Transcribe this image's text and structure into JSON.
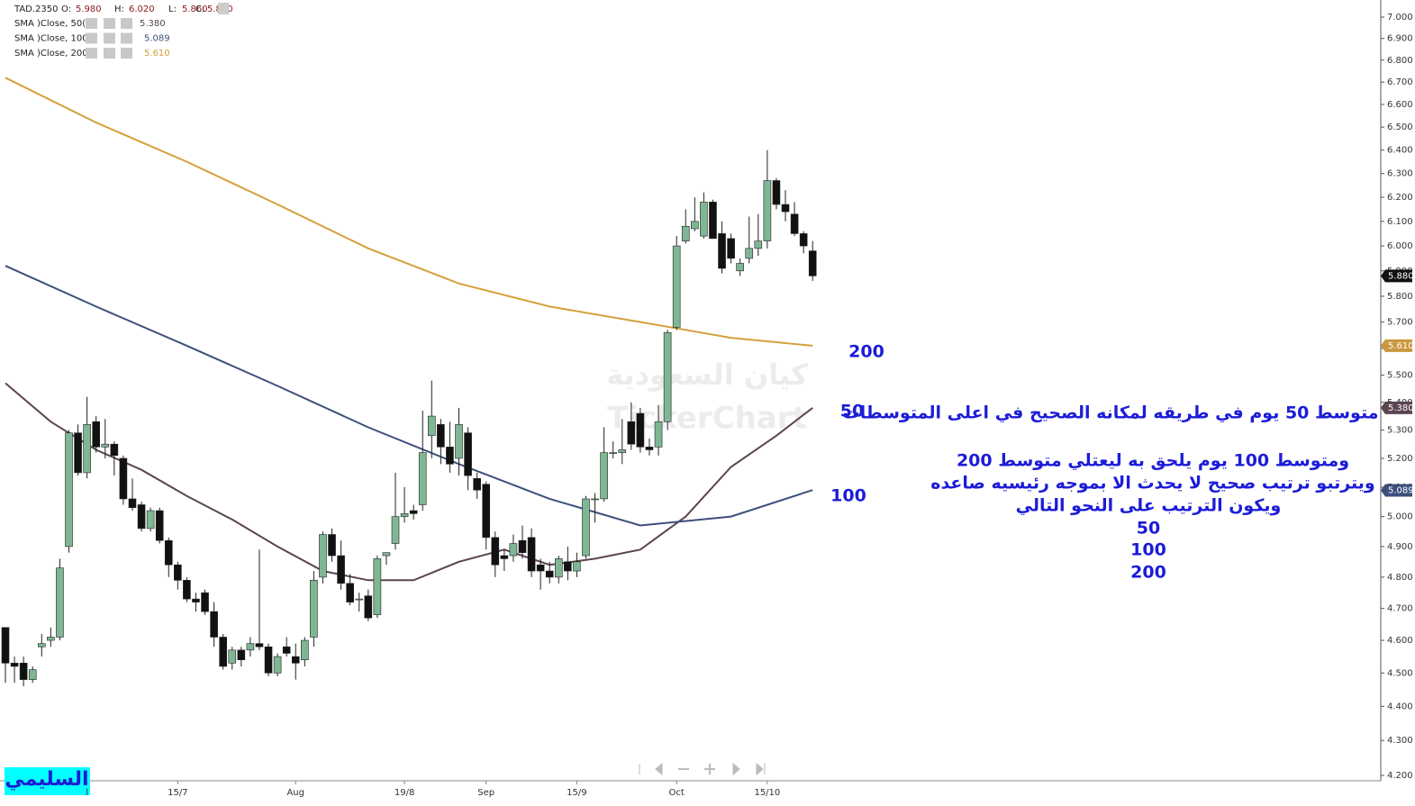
{
  "chart_data": {
    "type": "candlestick",
    "log_scale": true,
    "header": {
      "symbol": "TAD.2350",
      "fields": [
        {
          "key": "O:",
          "value": "5.980"
        },
        {
          "key": "H:",
          "value": "6.020"
        },
        {
          "key": "L:",
          "value": "5.860"
        },
        {
          "key": "C:",
          "value": "5.880"
        }
      ]
    },
    "categories": [
      null,
      null,
      null,
      null,
      null,
      null,
      null,
      null,
      null,
      "l",
      null,
      null,
      null,
      null,
      null,
      null,
      null,
      null,
      null,
      "15/7",
      null,
      null,
      null,
      null,
      null,
      null,
      null,
      null,
      null,
      null,
      null,
      null,
      "Aug",
      null,
      null,
      null,
      null,
      null,
      null,
      null,
      null,
      null,
      null,
      null,
      "19/8",
      null,
      null,
      null,
      null,
      null,
      null,
      null,
      null,
      "Sep",
      null,
      null,
      null,
      null,
      null,
      null,
      null,
      null,
      null,
      "15/9",
      null,
      null,
      null,
      null,
      null,
      null,
      null,
      null,
      null,
      null,
      "Oct",
      null,
      null,
      null,
      null,
      null,
      null,
      null,
      null,
      null,
      "15/10",
      null,
      null,
      null,
      null,
      null
    ],
    "open": [
      4.64,
      4.53,
      4.53,
      4.48,
      4.58,
      4.6,
      4.61,
      4.9,
      5.29,
      5.15,
      5.33,
      5.24,
      5.25,
      5.2,
      5.06,
      5.04,
      4.96,
      5.02,
      4.92,
      4.84,
      4.79,
      4.73,
      4.75,
      4.69,
      4.61,
      4.53,
      4.57,
      4.57,
      4.59,
      4.58,
      4.5,
      4.58,
      4.55,
      4.54,
      4.61,
      4.8,
      4.94,
      4.87,
      4.78,
      4.73,
      4.74,
      4.68,
      4.87,
      4.91,
      5.0,
      5.02,
      5.04,
      5.28,
      5.32,
      5.24,
      5.2,
      5.29,
      5.13,
      5.11,
      4.93,
      4.87,
      4.87,
      4.92,
      4.93,
      4.84,
      4.82,
      4.8,
      4.85,
      4.82,
      4.87,
      5.06,
      5.06,
      5.22,
      5.22,
      5.33,
      5.36,
      5.24,
      5.24,
      5.33,
      5.68,
      6.02,
      6.07,
      6.04,
      6.18,
      6.05,
      6.03,
      5.9,
      5.95,
      5.99,
      6.02,
      6.27,
      6.17,
      6.13,
      6.05,
      5.98
    ],
    "high": [
      4.64,
      4.55,
      4.55,
      4.52,
      4.62,
      4.64,
      4.86,
      5.3,
      5.32,
      5.42,
      5.35,
      5.34,
      5.26,
      5.21,
      5.13,
      5.05,
      5.03,
      5.03,
      4.93,
      4.85,
      4.8,
      4.75,
      4.76,
      4.72,
      4.62,
      4.58,
      4.58,
      4.61,
      4.89,
      4.59,
      4.56,
      4.61,
      4.59,
      4.61,
      4.82,
      4.95,
      4.96,
      4.92,
      4.81,
      4.75,
      4.76,
      4.87,
      4.88,
      5.15,
      5.1,
      5.04,
      5.37,
      5.48,
      5.34,
      5.33,
      5.38,
      5.31,
      5.15,
      5.12,
      4.95,
      4.89,
      4.94,
      4.97,
      4.96,
      4.86,
      4.85,
      4.87,
      4.9,
      4.88,
      5.07,
      5.08,
      5.31,
      5.26,
      5.34,
      5.4,
      5.38,
      5.27,
      5.39,
      5.67,
      6.04,
      6.15,
      6.2,
      6.22,
      6.19,
      6.1,
      6.05,
      5.95,
      6.12,
      6.13,
      6.4,
      6.28,
      6.23,
      6.18,
      6.06,
      6.02
    ],
    "low": [
      4.47,
      4.47,
      4.46,
      4.47,
      4.55,
      4.58,
      4.6,
      4.88,
      5.14,
      5.13,
      5.22,
      5.2,
      5.14,
      5.04,
      5.02,
      4.95,
      4.95,
      4.91,
      4.8,
      4.76,
      4.72,
      4.69,
      4.68,
      4.58,
      4.51,
      4.51,
      4.52,
      4.55,
      4.57,
      4.49,
      4.49,
      4.55,
      4.48,
      4.52,
      4.58,
      4.78,
      4.85,
      4.76,
      4.71,
      4.69,
      4.66,
      4.67,
      4.84,
      4.89,
      4.98,
      4.99,
      5.02,
      5.2,
      5.18,
      5.15,
      5.14,
      5.09,
      5.06,
      4.89,
      4.8,
      4.82,
      4.85,
      4.86,
      4.8,
      4.76,
      4.78,
      4.78,
      4.79,
      4.8,
      4.86,
      4.98,
      5.05,
      5.2,
      5.18,
      5.23,
      5.22,
      5.21,
      5.21,
      5.3,
      5.67,
      6.01,
      6.06,
      6.03,
      6.03,
      5.89,
      5.93,
      5.88,
      5.93,
      5.96,
      5.99,
      6.15,
      6.1,
      6.04,
      5.97,
      5.86
    ],
    "close": [
      4.53,
      4.52,
      4.48,
      4.51,
      4.59,
      4.61,
      4.83,
      5.29,
      5.15,
      5.32,
      5.24,
      5.25,
      5.21,
      5.06,
      5.03,
      4.96,
      5.02,
      4.92,
      4.84,
      4.79,
      4.73,
      4.72,
      4.69,
      4.61,
      4.52,
      4.57,
      4.54,
      4.59,
      4.58,
      4.5,
      4.55,
      4.56,
      4.53,
      4.6,
      4.79,
      4.94,
      4.87,
      4.78,
      4.72,
      4.73,
      4.67,
      4.86,
      4.88,
      5.0,
      5.01,
      5.01,
      5.22,
      5.35,
      5.24,
      5.18,
      5.32,
      5.14,
      5.09,
      4.93,
      4.84,
      4.86,
      4.91,
      4.88,
      4.82,
      4.82,
      4.8,
      4.86,
      4.82,
      4.85,
      5.06,
      5.06,
      5.22,
      5.22,
      5.23,
      5.25,
      5.24,
      5.23,
      5.33,
      5.66,
      6.0,
      6.08,
      6.1,
      6.18,
      6.03,
      5.91,
      5.95,
      5.93,
      5.99,
      6.02,
      6.27,
      6.17,
      6.14,
      6.05,
      6.0,
      5.88
    ],
    "up_color": "#7fb693",
    "down_color": "#111111",
    "series": [
      {
        "name": "SMA )Close, 50(",
        "color": "#5b4550",
        "last_label": "5.380",
        "x": [
          0,
          5,
          10,
          15,
          20,
          25,
          30,
          35,
          40,
          45,
          50,
          55,
          60,
          65,
          70,
          75,
          80,
          85,
          89
        ],
        "values": [
          5.47,
          5.33,
          5.23,
          5.16,
          5.07,
          4.99,
          4.9,
          4.82,
          4.79,
          4.79,
          4.85,
          4.89,
          4.84,
          4.86,
          4.89,
          5.0,
          5.17,
          5.28,
          5.38
        ]
      },
      {
        "name": "SMA )Close, 100(",
        "color": "#3d4f7c",
        "last_label": "5.089",
        "x": [
          0,
          10,
          20,
          30,
          40,
          50,
          60,
          70,
          80,
          89
        ],
        "values": [
          5.92,
          5.76,
          5.61,
          5.46,
          5.31,
          5.18,
          5.06,
          4.97,
          5.0,
          5.09
        ]
      },
      {
        "name": "SMA )Close, 200(",
        "color": "#d4a03c",
        "last_label": "5.610",
        "x": [
          0,
          10,
          20,
          30,
          40,
          50,
          60,
          70,
          80,
          89
        ],
        "values": [
          6.72,
          6.52,
          6.35,
          6.17,
          5.99,
          5.85,
          5.76,
          5.7,
          5.64,
          5.61
        ]
      }
    ],
    "price_tags": [
      {
        "value": 5.88,
        "label": "5.880",
        "color": "#111111"
      },
      {
        "value": 5.61,
        "label": "5.610",
        "color": "#c9983f"
      },
      {
        "value": 5.38,
        "label": "5.380",
        "color": "#5b4550"
      },
      {
        "value": 5.089,
        "label": "5.089",
        "color": "#3d4f7c"
      }
    ],
    "ylim": [
      4.2,
      7.0
    ],
    "yticks": [
      {
        "value": 4.2,
        "label": "4.200"
      },
      {
        "value": 4.3,
        "label": "4.300"
      },
      {
        "value": 4.4,
        "label": "4.400"
      },
      {
        "value": 4.5,
        "label": "4.500"
      },
      {
        "value": 4.6,
        "label": "4.600"
      },
      {
        "value": 4.7,
        "label": "4.700"
      },
      {
        "value": 4.8,
        "label": "4.800"
      },
      {
        "value": 4.9,
        "label": "4.900"
      },
      {
        "value": 5.0,
        "label": "5.000"
      },
      {
        "value": 5.1,
        "label": "5.100"
      },
      {
        "value": 5.2,
        "label": "5.200"
      },
      {
        "value": 5.3,
        "label": "5.300"
      },
      {
        "value": 5.4,
        "label": "5.400"
      },
      {
        "value": 5.5,
        "label": "5.500"
      },
      {
        "value": 5.6,
        "label": "5.600"
      },
      {
        "value": 5.7,
        "label": "5.700"
      },
      {
        "value": 5.8,
        "label": "5.800"
      },
      {
        "value": 5.9,
        "label": "5.900"
      },
      {
        "value": 6.0,
        "label": "6.000"
      },
      {
        "value": 6.1,
        "label": "6.100"
      },
      {
        "value": 6.2,
        "label": "6.200"
      },
      {
        "value": 6.3,
        "label": "6.300"
      },
      {
        "value": 6.4,
        "label": "6.400"
      },
      {
        "value": 6.5,
        "label": "6.500"
      },
      {
        "value": 6.6,
        "label": "6.600"
      },
      {
        "value": 6.7,
        "label": "6.700"
      },
      {
        "value": 6.8,
        "label": "6.800"
      },
      {
        "value": 6.9,
        "label": "6.900"
      },
      {
        "value": 7.0,
        "label": "7.000"
      }
    ],
    "annotations": [
      "200",
      "50",
      "100"
    ],
    "notes": [
      "متوسط 50 يوم في طريقه لمكانه الصحيح في اعلى المتوسطات",
      "ومتوسط 100 يوم يلحق به ليعتلي متوسط 200",
      "ويترتبو ترتيب صحيح لا يحدث الا بموجه رئيسيه صاعده",
      "ويكون الترتيب على النحو التالي",
      "50",
      "100",
      "200"
    ],
    "watermark": [
      "كيان السعودية",
      "TickerChart"
    ],
    "signature": "السليمي"
  }
}
